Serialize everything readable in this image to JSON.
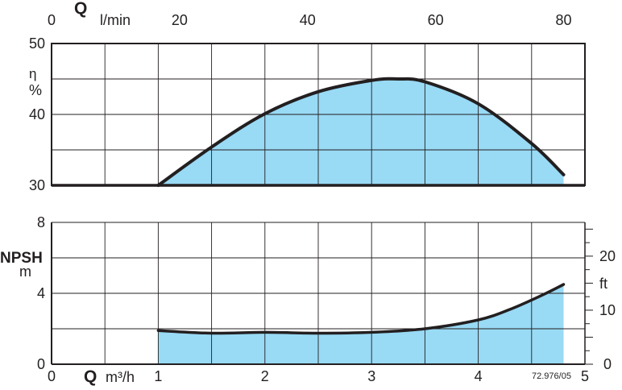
{
  "chart_data": [
    {
      "type": "area",
      "panel": "efficiency",
      "top_axis": {
        "label": "Q",
        "unit": "l/min",
        "range": [
          0,
          83.33
        ],
        "ticks": [
          "0",
          "20",
          "40",
          "60",
          "80"
        ]
      },
      "ylabel": "η",
      "yunit": "%",
      "ylim": [
        30,
        50
      ],
      "yticks": [
        "30",
        "40",
        "50"
      ],
      "grid": true,
      "fill_color": "#99daf5",
      "line_color": "#231f20",
      "series": [
        {
          "x": [
            1.0,
            1.5,
            2.0,
            2.5,
            3.0,
            3.25,
            3.5,
            4.0,
            4.5,
            4.8
          ],
          "y": [
            30.0,
            35.4,
            40.1,
            43.2,
            44.8,
            45.0,
            44.6,
            41.5,
            35.9,
            31.5
          ]
        }
      ]
    },
    {
      "type": "area",
      "panel": "npsh",
      "xlabel": "Q",
      "xunit": "m³/h",
      "xlim": [
        0,
        5
      ],
      "xticks": [
        "0",
        "1",
        "2",
        "3",
        "4",
        "5"
      ],
      "ylabel": "NPSH",
      "yunit": "m",
      "ylim": [
        0,
        8
      ],
      "yticks": [
        "0",
        "4",
        "8"
      ],
      "right_axis": {
        "unit": "ft",
        "ticks": [
          "0",
          "10",
          "20"
        ]
      },
      "grid": true,
      "fill_color": "#99daf5",
      "line_color": "#231f20",
      "series": [
        {
          "x": [
            1.0,
            1.5,
            2.0,
            2.5,
            3.0,
            3.5,
            4.0,
            4.3,
            4.6,
            4.8
          ],
          "y": [
            1.9,
            1.75,
            1.8,
            1.75,
            1.8,
            2.0,
            2.5,
            3.1,
            3.9,
            4.5
          ]
        }
      ]
    }
  ],
  "figure_code": "72.976/05"
}
